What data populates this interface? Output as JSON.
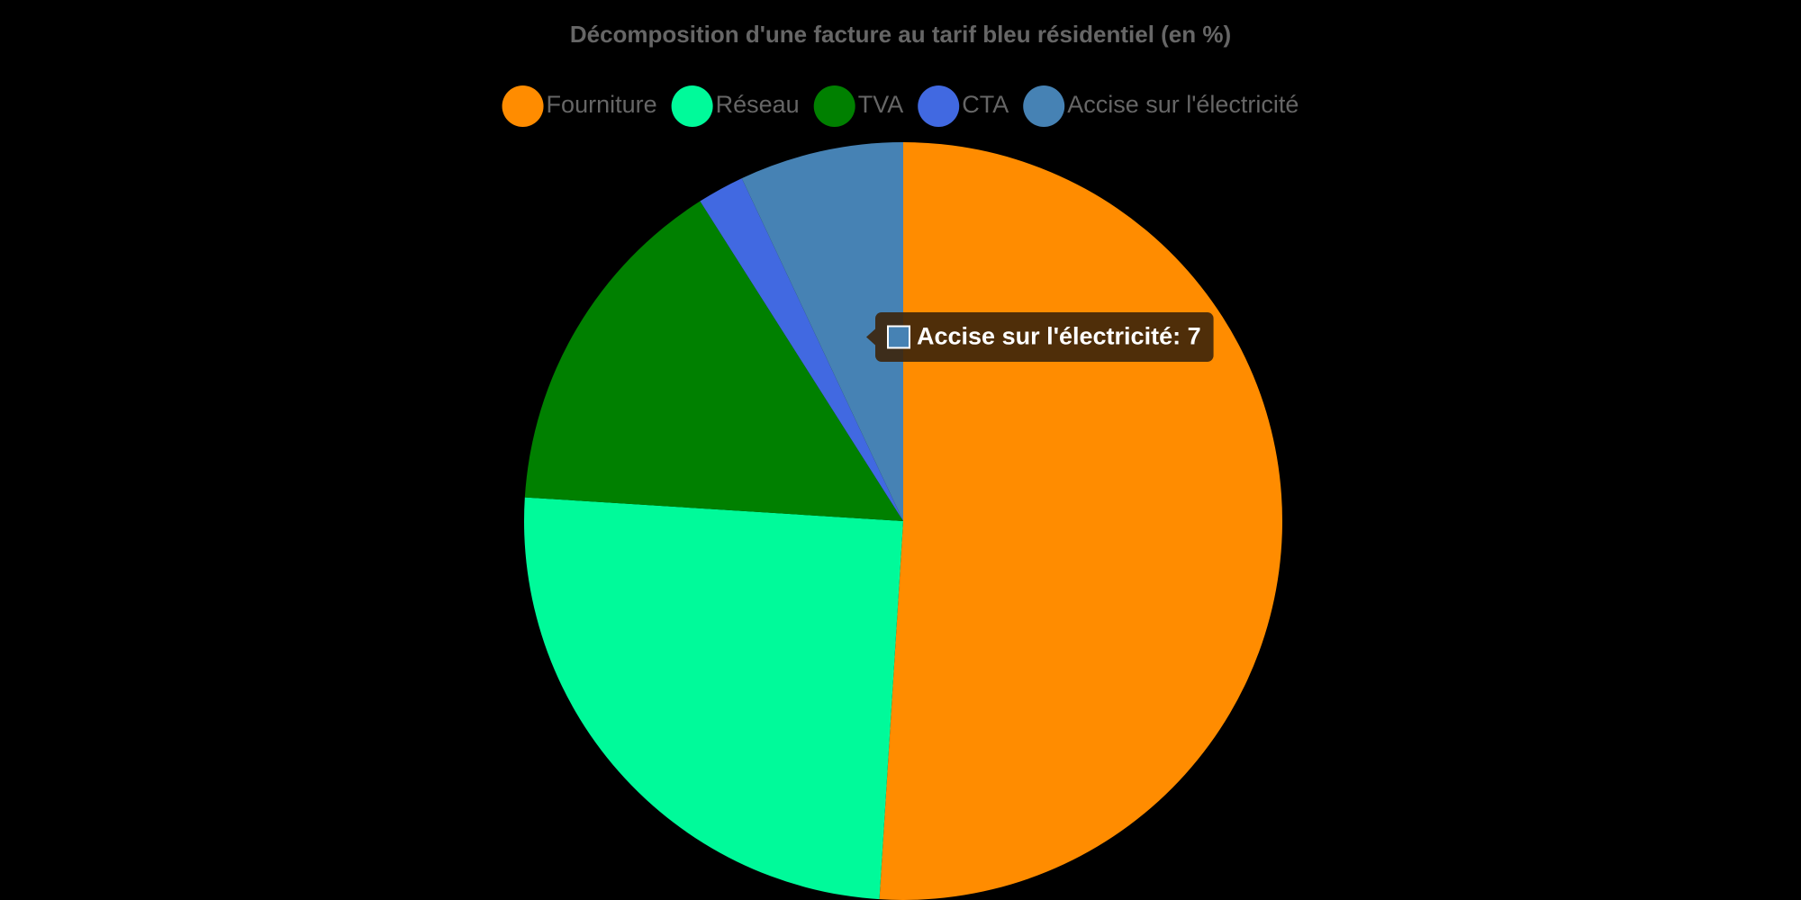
{
  "chart_data": {
    "type": "pie",
    "title": "Décomposition d'une facture au tarif bleu résidentiel (en %)",
    "categories": [
      "Fourniture",
      "Réseau",
      "TVA",
      "CTA",
      "Accise sur l'électricité"
    ],
    "values": [
      51,
      25,
      15,
      2,
      7
    ],
    "colors": [
      "#ff8c00",
      "#00fa9a",
      "#008000",
      "#4169e1",
      "#4682b4"
    ],
    "legend": "top",
    "tooltip": "Accise sur l'électricité: 7"
  }
}
